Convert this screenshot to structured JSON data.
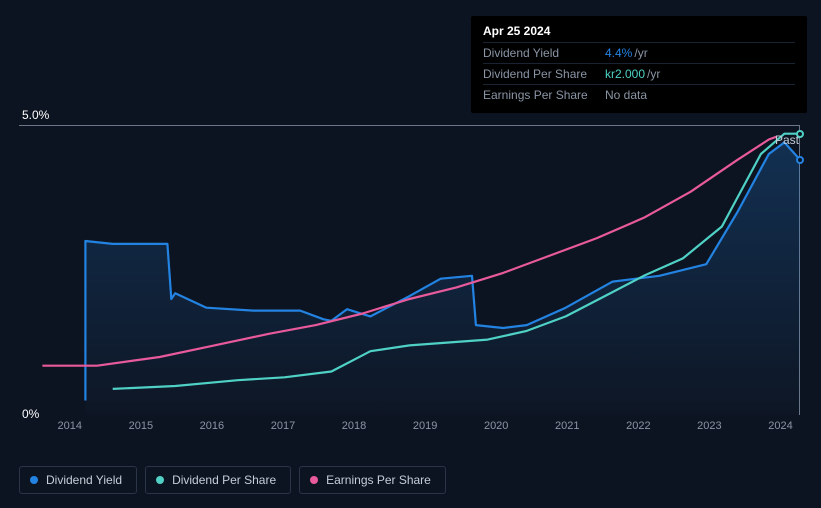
{
  "chart": {
    "type": "line",
    "background": "#0d1421",
    "plot_border_color": "#6b7688",
    "area_fill_gradient_top": "rgba(35,131,226,0.25)",
    "area_fill_gradient_bottom": "rgba(35,131,226,0.02)",
    "y_axis": {
      "min_label": "0%",
      "max_label": "5.0%",
      "label_color": "#ffffff"
    },
    "x_axis": {
      "labels": [
        "2014",
        "2015",
        "2016",
        "2017",
        "2018",
        "2019",
        "2020",
        "2021",
        "2022",
        "2023",
        "2024"
      ],
      "label_color": "#8a95a5"
    },
    "past_label": "Past",
    "series": [
      {
        "name": "Dividend Yield",
        "color": "#2383e2",
        "has_area": true,
        "points": [
          [
            0.085,
            0.05
          ],
          [
            0.085,
            0.6
          ],
          [
            0.12,
            0.59
          ],
          [
            0.18,
            0.59
          ],
          [
            0.19,
            0.59
          ],
          [
            0.195,
            0.4
          ],
          [
            0.2,
            0.42
          ],
          [
            0.24,
            0.37
          ],
          [
            0.3,
            0.36
          ],
          [
            0.36,
            0.36
          ],
          [
            0.39,
            0.33
          ],
          [
            0.4,
            0.325
          ],
          [
            0.42,
            0.365
          ],
          [
            0.45,
            0.34
          ],
          [
            0.5,
            0.41
          ],
          [
            0.54,
            0.47
          ],
          [
            0.58,
            0.48
          ],
          [
            0.585,
            0.31
          ],
          [
            0.62,
            0.3
          ],
          [
            0.65,
            0.31
          ],
          [
            0.7,
            0.37
          ],
          [
            0.76,
            0.46
          ],
          [
            0.82,
            0.48
          ],
          [
            0.88,
            0.52
          ],
          [
            0.92,
            0.7
          ],
          [
            0.96,
            0.9
          ],
          [
            0.98,
            0.94
          ],
          [
            1.0,
            0.88
          ]
        ]
      },
      {
        "name": "Dividend Per Share",
        "color": "#4fd1c5",
        "has_area": false,
        "points": [
          [
            0.12,
            0.09
          ],
          [
            0.2,
            0.1
          ],
          [
            0.28,
            0.12
          ],
          [
            0.34,
            0.13
          ],
          [
            0.4,
            0.15
          ],
          [
            0.45,
            0.22
          ],
          [
            0.5,
            0.24
          ],
          [
            0.55,
            0.25
          ],
          [
            0.6,
            0.26
          ],
          [
            0.65,
            0.29
          ],
          [
            0.7,
            0.34
          ],
          [
            0.75,
            0.41
          ],
          [
            0.8,
            0.48
          ],
          [
            0.85,
            0.54
          ],
          [
            0.9,
            0.65
          ],
          [
            0.95,
            0.9
          ],
          [
            0.98,
            0.97
          ],
          [
            1.0,
            0.97
          ]
        ]
      },
      {
        "name": "Earnings Per Share",
        "color": "#e85a9b",
        "has_area": false,
        "points": [
          [
            0.03,
            0.17
          ],
          [
            0.1,
            0.17
          ],
          [
            0.18,
            0.2
          ],
          [
            0.25,
            0.24
          ],
          [
            0.32,
            0.28
          ],
          [
            0.38,
            0.31
          ],
          [
            0.44,
            0.35
          ],
          [
            0.5,
            0.4
          ],
          [
            0.56,
            0.44
          ],
          [
            0.62,
            0.49
          ],
          [
            0.68,
            0.55
          ],
          [
            0.74,
            0.61
          ],
          [
            0.8,
            0.68
          ],
          [
            0.86,
            0.77
          ],
          [
            0.92,
            0.88
          ],
          [
            0.96,
            0.95
          ],
          [
            0.97,
            0.96
          ]
        ]
      }
    ],
    "end_markers": [
      {
        "series": 0,
        "x": 1.0,
        "y": 0.88,
        "color": "#2383e2"
      },
      {
        "series": 1,
        "x": 1.0,
        "y": 0.97,
        "color": "#4fd1c5"
      }
    ]
  },
  "tooltip": {
    "date": "Apr 25 2024",
    "rows": [
      {
        "label": "Dividend Yield",
        "value": "4.4%",
        "value_color": "#2383e2",
        "unit": "/yr"
      },
      {
        "label": "Dividend Per Share",
        "value": "kr2.000",
        "value_color": "#4fd1c5",
        "unit": "/yr"
      },
      {
        "label": "Earnings Per Share",
        "value": "No data",
        "value_color": "#8a95a5",
        "unit": ""
      }
    ]
  },
  "legend": {
    "items": [
      {
        "label": "Dividend Yield",
        "color": "#2383e2"
      },
      {
        "label": "Dividend Per Share",
        "color": "#4fd1c5"
      },
      {
        "label": "Earnings Per Share",
        "color": "#e85a9b"
      }
    ]
  }
}
